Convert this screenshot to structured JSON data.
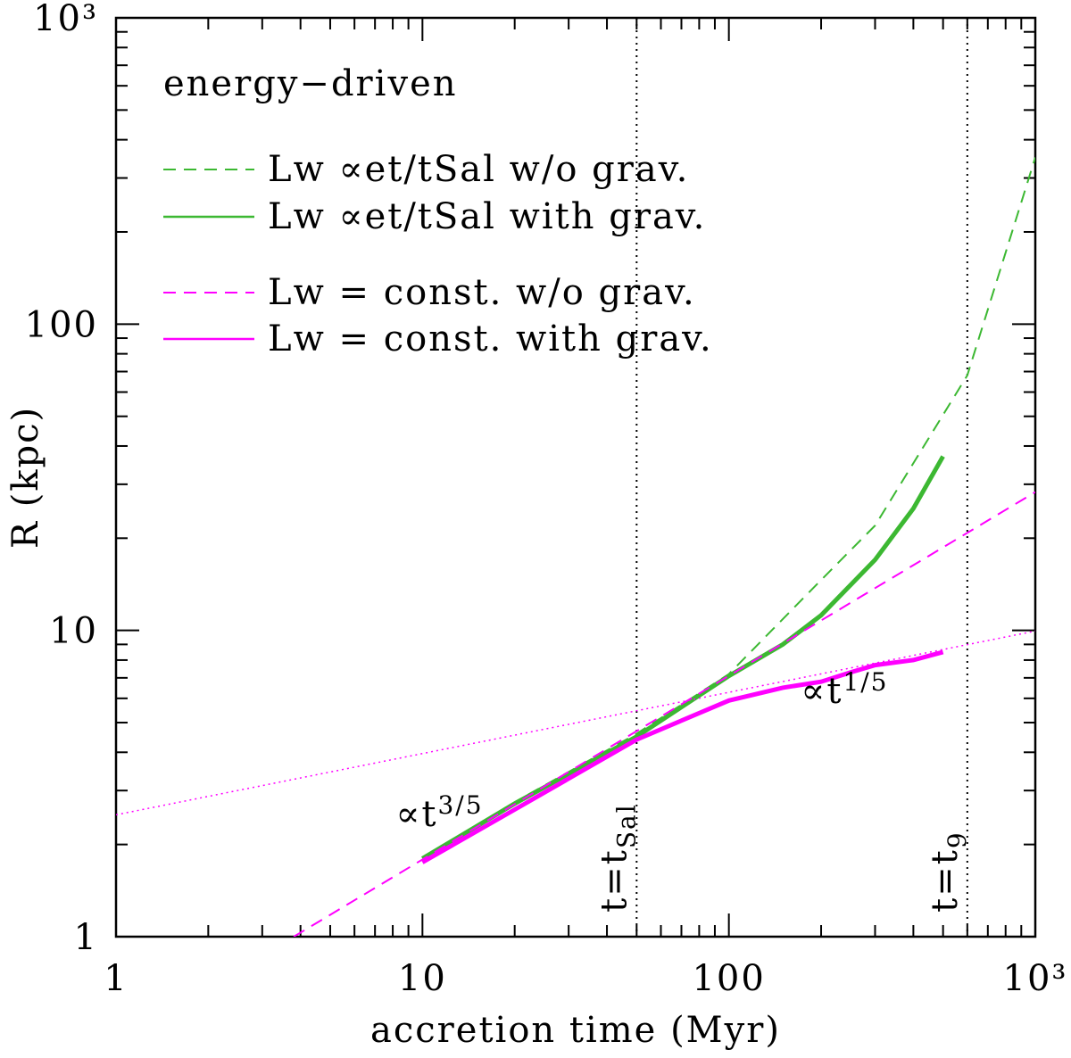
{
  "chart_data": {
    "type": "line",
    "xlabel": "accretion time (Myr)",
    "ylabel": "R (kpc)",
    "xscale": "log",
    "yscale": "log",
    "xlim": [
      1,
      1000
    ],
    "ylim": [
      1,
      1000
    ],
    "xticks": [
      1,
      10,
      100,
      {
        "value": 1000,
        "label": "10³"
      }
    ],
    "yticks": [
      1,
      10,
      100,
      {
        "value": 1000,
        "label": "10³"
      }
    ],
    "xminorticks": [
      2,
      3,
      4,
      5,
      6,
      7,
      8,
      9,
      20,
      30,
      40,
      50,
      60,
      70,
      80,
      90,
      200,
      300,
      400,
      500,
      600,
      700,
      800,
      900
    ],
    "yminorticks": [
      2,
      3,
      4,
      5,
      6,
      7,
      8,
      9,
      20,
      30,
      40,
      50,
      60,
      70,
      80,
      90,
      200,
      300,
      400,
      500,
      600,
      700,
      800,
      900
    ],
    "legend_title": "energy−driven",
    "series": [
      {
        "name": "Lw ∝et/tSal w/o grav.",
        "color": "#3cb832",
        "style": "dashed",
        "width": 2,
        "x": [
          10,
          20,
          50,
          100,
          200,
          300,
          600,
          1000
        ],
        "values": [
          1.8,
          2.75,
          4.6,
          7.2,
          14.6,
          22,
          68,
          350
        ]
      },
      {
        "name": "Lw ∝et/tSal with grav.",
        "color": "#3cb832",
        "style": "solid",
        "width": 5,
        "x": [
          10,
          20,
          50,
          100,
          150,
          200,
          300,
          400,
          500
        ],
        "values": [
          1.8,
          2.72,
          4.5,
          7.1,
          9,
          11.2,
          17,
          25,
          37
        ]
      },
      {
        "name": "Lw = const. w/o grav.",
        "color": "#ff00ff",
        "style": "dashed",
        "width": 2,
        "x": [
          3.8,
          1000
        ],
        "values": [
          1,
          28.3
        ]
      },
      {
        "name": "Lw = const. with grav.",
        "color": "#ff00ff",
        "style": "solid",
        "width": 5,
        "x": [
          10,
          20,
          50,
          100,
          150,
          200,
          250,
          300,
          400,
          500
        ],
        "values": [
          1.75,
          2.6,
          4.4,
          5.9,
          6.5,
          6.8,
          7.3,
          7.7,
          8.0,
          8.5
        ]
      },
      {
        "color": "#ff00ff",
        "style": "dotted",
        "width": 1.5,
        "x": [
          1,
          1000
        ],
        "values": [
          2.5,
          9.95
        ]
      }
    ],
    "vlines": [
      50,
      600
    ],
    "annotations": [
      {
        "text": "∝t",
        "sup": "3/5",
        "x": 10,
        "y": 2.3
      },
      {
        "text": "∝t",
        "sup": "1/5",
        "x": 210,
        "y": 5.8
      },
      {
        "text": "t=t",
        "sub": "Sal",
        "x": 50,
        "y": 1.2
      },
      {
        "text": "t=t",
        "sub": "9",
        "x": 600,
        "y": 1.2
      }
    ]
  }
}
